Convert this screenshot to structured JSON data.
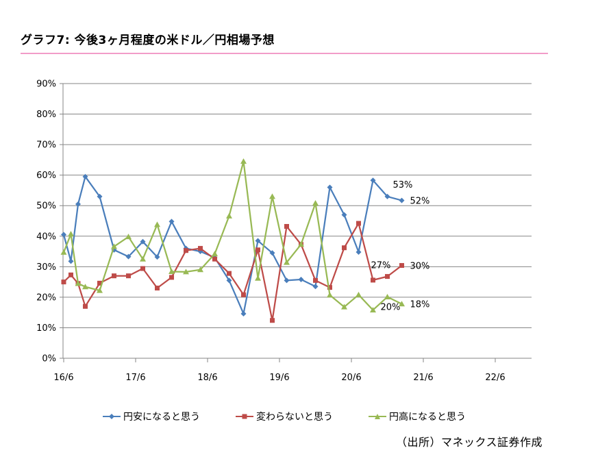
{
  "title": "グラフ7: 今後3ヶ月程度の米ドル／円相場予想",
  "source": "（出所）マネックス証券作成",
  "chart_data": {
    "type": "line",
    "ylim": [
      0,
      90
    ],
    "y_ticks": [
      "0%",
      "10%",
      "20%",
      "30%",
      "40%",
      "50%",
      "60%",
      "70%",
      "80%",
      "90%"
    ],
    "x_ticks": [
      "16/6",
      "17/6",
      "18/6",
      "19/6",
      "20/6",
      "21/6",
      "22/6"
    ],
    "x_tick_index": [
      0,
      10,
      20,
      30,
      40,
      50,
      60
    ],
    "grid": "horizontal",
    "legend_position": "bottom",
    "series": [
      {
        "name": "円安になると思う",
        "color": "#4a7ebb",
        "marker": "diamond",
        "values": [
          40.5,
          31.8,
          50.5,
          59.5,
          null,
          53,
          null,
          35.5,
          null,
          33.3,
          null,
          38.2,
          null,
          33.2,
          null,
          44.8,
          null,
          36,
          null,
          35,
          null,
          33,
          null,
          25.5,
          null,
          14.6,
          null,
          38.5,
          null,
          34.5,
          null,
          25.5,
          null,
          25.8,
          null,
          23.5,
          null,
          56,
          null,
          47,
          null,
          34.8,
          null,
          58.3,
          null,
          53,
          null,
          51.7
        ],
        "end_label": "52%",
        "mid_label": "53%"
      },
      {
        "name": "変わらないと思う",
        "color": "#be4b48",
        "marker": "square",
        "values": [
          25,
          27.3,
          24.5,
          17,
          null,
          24.6,
          null,
          27,
          null,
          27,
          null,
          29.4,
          null,
          23,
          null,
          26.5,
          null,
          35.3,
          null,
          36,
          null,
          32.5,
          null,
          27.8,
          null,
          20.8,
          null,
          35.5,
          null,
          12.4,
          null,
          43.2,
          null,
          37.3,
          null,
          25.5,
          null,
          23.2,
          null,
          36.2,
          null,
          44.2,
          null,
          25.6,
          null,
          26.8,
          null,
          30.4
        ],
        "end_label": "30%",
        "mid_label": "27%"
      },
      {
        "name": "円高になると思う",
        "color": "#98b954",
        "marker": "triangle",
        "values": [
          34.7,
          40.7,
          24.5,
          23.4,
          null,
          22.2,
          null,
          36.6,
          null,
          39.8,
          null,
          32.5,
          null,
          43.8,
          null,
          28.4,
          null,
          28.3,
          null,
          29,
          null,
          34.2,
          null,
          46.6,
          null,
          64.5,
          null,
          26.2,
          null,
          53,
          null,
          31.4,
          null,
          37.3,
          null,
          50.8,
          null,
          20.7,
          null,
          16.8,
          null,
          20.8,
          null,
          15.8,
          null,
          20.1,
          null,
          17.8
        ],
        "end_label": "18%",
        "mid_label": "20%"
      }
    ]
  }
}
